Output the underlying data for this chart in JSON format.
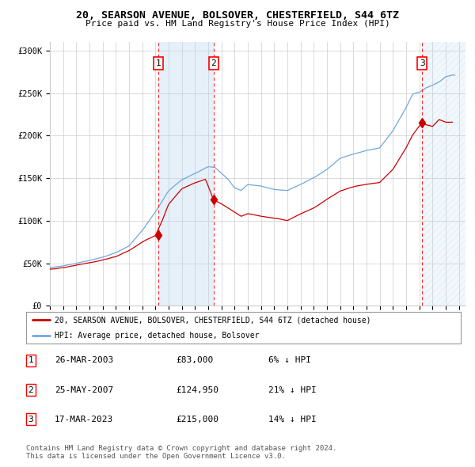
{
  "title": "20, SEARSON AVENUE, BOLSOVER, CHESTERFIELD, S44 6TZ",
  "subtitle": "Price paid vs. HM Land Registry's House Price Index (HPI)",
  "ylim": [
    0,
    310000
  ],
  "yticks": [
    0,
    50000,
    100000,
    150000,
    200000,
    250000,
    300000
  ],
  "ytick_labels": [
    "£0",
    "£50K",
    "£100K",
    "£150K",
    "£200K",
    "£250K",
    "£300K"
  ],
  "xmin_year": 1995.0,
  "xmax_year": 2026.5,
  "xticks": [
    1995,
    1996,
    1997,
    1998,
    1999,
    2000,
    2001,
    2002,
    2003,
    2004,
    2005,
    2006,
    2007,
    2008,
    2009,
    2010,
    2011,
    2012,
    2013,
    2014,
    2015,
    2016,
    2017,
    2018,
    2019,
    2020,
    2021,
    2022,
    2023,
    2024,
    2025,
    2026
  ],
  "sale_dates": [
    2003.23,
    2007.4,
    2023.21
  ],
  "sale_prices": [
    83000,
    124950,
    215000
  ],
  "sale_labels": [
    "1",
    "2",
    "3"
  ],
  "hpi_color": "#6fa8dc",
  "price_color": "#cc0000",
  "bg_color": "#ffffff",
  "plot_bg_color": "#ffffff",
  "grid_color": "#cccccc",
  "shade_color": "#ddeeff",
  "legend_house": "20, SEARSON AVENUE, BOLSOVER, CHESTERFIELD, S44 6TZ (detached house)",
  "legend_hpi": "HPI: Average price, detached house, Bolsover",
  "table_entries": [
    [
      "1",
      "26-MAR-2003",
      "£83,000",
      "6% ↓ HPI"
    ],
    [
      "2",
      "25-MAY-2007",
      "£124,950",
      "21% ↓ HPI"
    ],
    [
      "3",
      "17-MAR-2023",
      "£215,000",
      "14% ↓ HPI"
    ]
  ],
  "footer": "Contains HM Land Registry data © Crown copyright and database right 2024.\nThis data is licensed under the Open Government Licence v3.0.",
  "hpi_key_points": [
    [
      1995.0,
      45000
    ],
    [
      1996.0,
      47000
    ],
    [
      1997.0,
      50000
    ],
    [
      1998.0,
      53000
    ],
    [
      1999.0,
      57000
    ],
    [
      2000.0,
      62000
    ],
    [
      2001.0,
      70000
    ],
    [
      2002.0,
      88000
    ],
    [
      2003.0,
      110000
    ],
    [
      2004.0,
      135000
    ],
    [
      2005.0,
      148000
    ],
    [
      2006.0,
      155000
    ],
    [
      2007.0,
      163000
    ],
    [
      2007.5,
      162000
    ],
    [
      2008.0,
      155000
    ],
    [
      2008.5,
      148000
    ],
    [
      2009.0,
      138000
    ],
    [
      2009.5,
      135000
    ],
    [
      2010.0,
      142000
    ],
    [
      2011.0,
      140000
    ],
    [
      2012.0,
      136000
    ],
    [
      2013.0,
      135000
    ],
    [
      2014.0,
      142000
    ],
    [
      2015.0,
      150000
    ],
    [
      2016.0,
      160000
    ],
    [
      2017.0,
      173000
    ],
    [
      2018.0,
      178000
    ],
    [
      2019.0,
      182000
    ],
    [
      2020.0,
      185000
    ],
    [
      2021.0,
      205000
    ],
    [
      2022.0,
      232000
    ],
    [
      2022.5,
      248000
    ],
    [
      2023.0,
      250000
    ],
    [
      2023.5,
      255000
    ],
    [
      2024.0,
      258000
    ],
    [
      2024.5,
      262000
    ],
    [
      2025.0,
      268000
    ],
    [
      2025.5,
      270000
    ]
  ],
  "price_key_points": [
    [
      1995.0,
      43000
    ],
    [
      1996.0,
      45000
    ],
    [
      1997.0,
      48000
    ],
    [
      1998.0,
      51000
    ],
    [
      1999.0,
      54000
    ],
    [
      2000.0,
      58000
    ],
    [
      2001.0,
      65000
    ],
    [
      2002.0,
      75000
    ],
    [
      2003.0,
      83000
    ],
    [
      2003.5,
      100000
    ],
    [
      2004.0,
      120000
    ],
    [
      2005.0,
      138000
    ],
    [
      2006.0,
      145000
    ],
    [
      2006.8,
      149000
    ],
    [
      2007.4,
      124950
    ],
    [
      2008.0,
      120000
    ],
    [
      2008.5,
      115000
    ],
    [
      2009.0,
      110000
    ],
    [
      2009.5,
      105000
    ],
    [
      2010.0,
      108000
    ],
    [
      2011.0,
      105000
    ],
    [
      2012.0,
      103000
    ],
    [
      2013.0,
      100000
    ],
    [
      2014.0,
      108000
    ],
    [
      2015.0,
      115000
    ],
    [
      2016.0,
      125000
    ],
    [
      2017.0,
      135000
    ],
    [
      2018.0,
      140000
    ],
    [
      2019.0,
      143000
    ],
    [
      2020.0,
      145000
    ],
    [
      2021.0,
      160000
    ],
    [
      2022.0,
      185000
    ],
    [
      2022.5,
      200000
    ],
    [
      2023.21,
      215000
    ],
    [
      2023.5,
      212000
    ],
    [
      2024.0,
      210000
    ],
    [
      2024.5,
      218000
    ],
    [
      2025.0,
      215000
    ]
  ]
}
